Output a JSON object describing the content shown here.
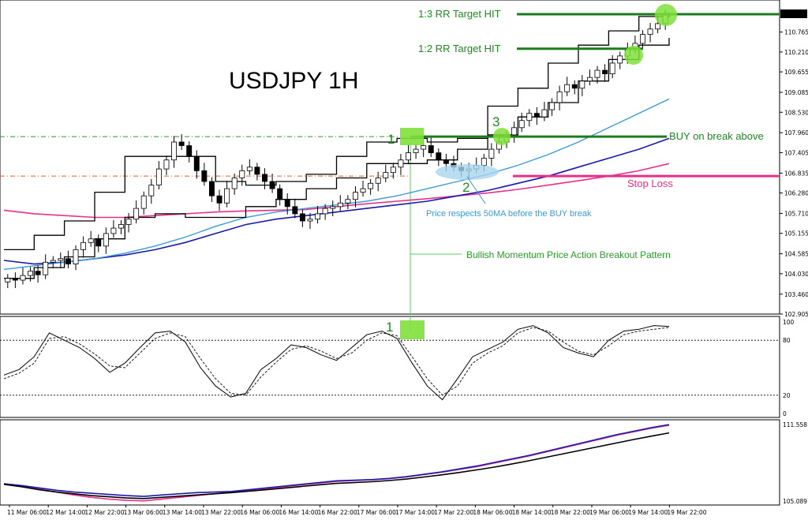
{
  "chart_data": {
    "type": "line",
    "title": "USDJPY 1H",
    "instrument": "USDJPY",
    "timeframe": "1H",
    "price_panel": {
      "y_ticks": [
        "111.263",
        "110.765",
        "110.210",
        "109.655",
        "109.085",
        "108.530",
        "107.960",
        "107.405",
        "106.835",
        "106.280",
        "105.710",
        "105.155",
        "104.585",
        "104.030",
        "103.460",
        "102.905"
      ],
      "current_price": "111.263",
      "ylim": [
        102.905,
        111.263
      ],
      "close": [
        103.9,
        103.85,
        103.98,
        104.1,
        104.0,
        104.35,
        104.4,
        104.45,
        104.3,
        104.7,
        104.9,
        105.0,
        104.8,
        105.15,
        105.3,
        105.4,
        105.55,
        105.85,
        106.2,
        106.5,
        106.95,
        107.2,
        107.7,
        107.6,
        107.3,
        106.9,
        106.6,
        106.2,
        106.0,
        106.4,
        106.7,
        106.9,
        107.0,
        106.8,
        106.6,
        106.4,
        106.1,
        105.9,
        105.7,
        105.5,
        105.55,
        105.7,
        105.85,
        105.9,
        106.0,
        106.1,
        106.3,
        106.4,
        106.55,
        106.7,
        106.85,
        107.0,
        107.2,
        107.4,
        107.5,
        107.6,
        107.4,
        107.2,
        107.1,
        107.0,
        106.9,
        106.95,
        107.05,
        107.25,
        107.5,
        107.7,
        107.9,
        108.1,
        108.3,
        108.5,
        108.4,
        108.6,
        108.8,
        109.1,
        109.3,
        109.2,
        109.4,
        109.5,
        109.7,
        109.6,
        109.9,
        110.1,
        110.3,
        110.45,
        110.7,
        110.85,
        111.0,
        111.26
      ],
      "ma_light_blue": [
        104.15,
        104.25,
        104.35,
        104.45,
        104.6,
        104.8,
        105.05,
        105.35,
        105.6,
        105.75,
        105.85,
        105.95,
        106.05,
        106.2,
        106.4,
        106.6,
        106.8,
        107.05,
        107.35,
        107.7,
        108.1,
        108.5,
        108.9
      ],
      "ma_dark_blue": [
        104.4,
        104.3,
        104.35,
        104.45,
        104.55,
        104.7,
        104.9,
        105.15,
        105.4,
        105.55,
        105.65,
        105.75,
        105.85,
        105.95,
        106.05,
        106.2,
        106.35,
        106.55,
        106.75,
        107.0,
        107.25,
        107.5,
        107.8
      ],
      "ma_pink": [
        105.8,
        105.7,
        105.65,
        105.6,
        105.6,
        105.65,
        105.7,
        105.75,
        105.78,
        105.8,
        105.82,
        105.9,
        105.98,
        106.05,
        106.12,
        106.2,
        106.28,
        106.38,
        106.5,
        106.62,
        106.75,
        106.9,
        107.1
      ],
      "channel_high": [
        104.7,
        105.1,
        105.5,
        106.3,
        107.3,
        107.3,
        107.3,
        106.6,
        106.5,
        106.6,
        106.8,
        107.3,
        107.7,
        107.8,
        107.7,
        107.8,
        108.7,
        109.2,
        109.9,
        110.4,
        110.8,
        111.2,
        111.26
      ],
      "channel_low": [
        103.9,
        104.2,
        104.5,
        105.0,
        105.6,
        105.7,
        105.6,
        105.6,
        105.9,
        106.1,
        106.4,
        106.7,
        107.1,
        107.1,
        107.2,
        107.5,
        107.9,
        108.4,
        108.8,
        109.4,
        110.0,
        110.4,
        110.6
      ]
    },
    "oscillator_panel": {
      "y_ticks": [
        "100",
        "80",
        "20",
        "0"
      ],
      "levels": [
        80,
        20
      ],
      "ylim": [
        0,
        100
      ],
      "main": [
        42,
        48,
        62,
        88,
        80,
        72,
        60,
        45,
        55,
        72,
        88,
        90,
        78,
        50,
        30,
        18,
        22,
        48,
        60,
        75,
        72,
        64,
        58,
        72,
        86,
        90,
        82,
        55,
        30,
        15,
        38,
        62,
        70,
        78,
        92,
        96,
        88,
        72,
        66,
        62,
        80,
        90,
        92,
        96,
        95
      ],
      "signal": [
        38,
        44,
        55,
        82,
        84,
        76,
        65,
        52,
        50,
        66,
        82,
        88,
        84,
        60,
        38,
        22,
        20,
        40,
        56,
        70,
        74,
        68,
        60,
        66,
        80,
        88,
        85,
        62,
        38,
        20,
        30,
        55,
        66,
        74,
        88,
        94,
        90,
        78,
        68,
        64,
        74,
        86,
        90,
        92,
        94
      ]
    },
    "bottom_panel": {
      "y_ticks": [
        "111.558",
        "105.089"
      ],
      "ylim": [
        105.089,
        111.558
      ],
      "blue": [
        106.55,
        106.4,
        106.2,
        106.0,
        105.85,
        105.75,
        105.65,
        105.55,
        105.48,
        105.6,
        105.7,
        105.8,
        105.85,
        105.9,
        106.05,
        106.2,
        106.35,
        106.5,
        106.65,
        106.8,
        106.85,
        106.9,
        107.0,
        107.15,
        107.35,
        107.55,
        107.8,
        108.05,
        108.35,
        108.65,
        108.95,
        109.3,
        109.65,
        110.0,
        110.35,
        110.7,
        111.0,
        111.3,
        111.56
      ],
      "pink": [
        106.55,
        106.35,
        106.1,
        105.85,
        105.6,
        105.4,
        105.25,
        105.15,
        105.1,
        105.25,
        105.4,
        105.55,
        105.7,
        105.85,
        106.0,
        106.15,
        106.3,
        106.45,
        106.6,
        106.75,
        106.82,
        106.88,
        106.98,
        107.12,
        107.32,
        107.52,
        107.76,
        108.0,
        108.3,
        108.6,
        108.9,
        109.25,
        109.6,
        109.95,
        110.3,
        110.65,
        110.95,
        111.25,
        111.5
      ],
      "black": [
        106.5,
        106.3,
        106.05,
        105.85,
        105.7,
        105.55,
        105.45,
        105.35,
        105.3,
        105.4,
        105.5,
        105.6,
        105.7,
        105.8,
        105.92,
        106.05,
        106.18,
        106.32,
        106.46,
        106.58,
        106.65,
        106.72,
        106.82,
        106.95,
        107.12,
        107.3,
        107.5,
        107.72,
        107.96,
        108.22,
        108.5,
        108.8,
        109.1,
        109.4,
        109.7,
        110.0,
        110.3,
        110.58,
        110.85
      ]
    },
    "x_ticks": [
      "11 Mar 06:00",
      "12 Mar 14:00",
      "12 Mar 22:00",
      "13 Mar 06:00",
      "13 Mar 14:00",
      "13 Mar 22:00",
      "16 Mar 06:00",
      "16 Mar 14:00",
      "16 Mar 22:00",
      "17 Mar 06:00",
      "17 Mar 14:00",
      "17 Mar 22:00",
      "18 Mar 06:00",
      "18 Mar 14:00",
      "18 Mar 22:00",
      "19 Mar 06:00",
      "19 Mar 14:00",
      "19 Mar 22:00"
    ],
    "levels": {
      "target_3rr": 111.263,
      "target_2rr": 110.3,
      "buy_break": 107.85,
      "stop_loss": 106.75,
      "prior_high": 107.85,
      "prior_low": 106.75
    },
    "annotations": {
      "target_3rr_label": "1:3 RR Target HIT",
      "target_2rr_label": "1:2 RR Target HIT",
      "buy_label": "BUY on break above",
      "stop_label": "Stop Loss",
      "ma_note": "Price respects 50MA before the BUY break",
      "pattern_note": "Bullish Momentum Price Action Breakout Pattern",
      "point1": "1",
      "point2": "2",
      "point3": "3",
      "osc_point1": "1"
    },
    "colors": {
      "target_line": "#1e7a1e",
      "buy_line": "#1e7a1e",
      "stop_line": "#e8308a",
      "highlight": "#7fe03a",
      "ma_light_blue": "#3d9ad6",
      "ma_dark_blue": "#1a1aa8",
      "ma_pink": "#e8308a",
      "pattern_vline": "#5cc85c"
    }
  }
}
